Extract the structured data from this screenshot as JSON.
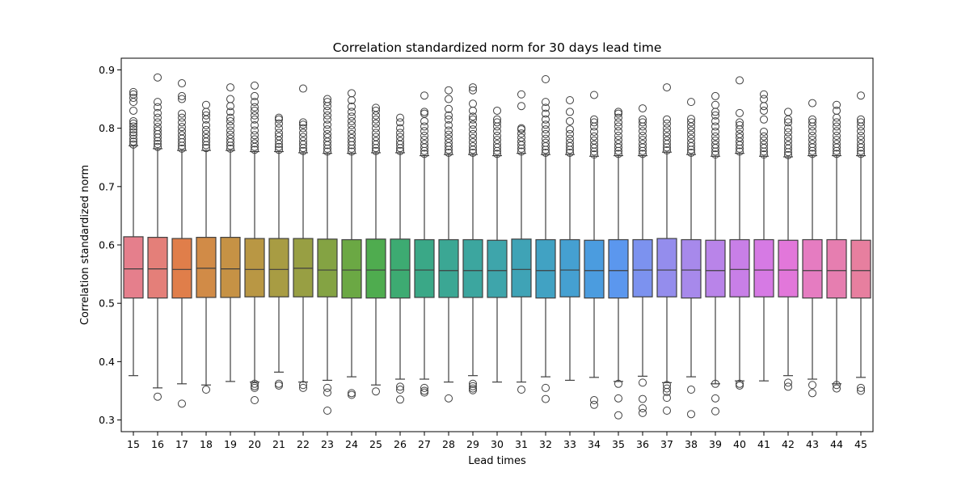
{
  "chart_data": {
    "type": "box",
    "title": "Correlation standardized norm for 30 days lead time",
    "xlabel": "Lead times",
    "ylabel": "Correlation standardized norm",
    "ylim": [
      0.28,
      0.92
    ],
    "yticks": [
      "0.3",
      "0.4",
      "0.5",
      "0.6",
      "0.7",
      "0.8",
      "0.9"
    ],
    "ytick_values": [
      0.3,
      0.4,
      0.5,
      0.6,
      0.7,
      0.8,
      0.9
    ],
    "grid": false,
    "legend": "none",
    "categories": [
      "15",
      "16",
      "17",
      "18",
      "19",
      "20",
      "21",
      "22",
      "23",
      "24",
      "25",
      "26",
      "27",
      "28",
      "29",
      "30",
      "31",
      "32",
      "33",
      "34",
      "35",
      "36",
      "37",
      "38",
      "39",
      "40",
      "41",
      "42",
      "43",
      "44",
      "45"
    ],
    "colors": [
      "#e57f8c",
      "#e47f79",
      "#e07e4a",
      "#d18b47",
      "#c69245",
      "#b99744",
      "#a89c43",
      "#989f43",
      "#84a343",
      "#6ba844",
      "#4fac4f",
      "#3dab72",
      "#3aa887",
      "#3ba794",
      "#3ca69f",
      "#3ea5ab",
      "#3fa3b6",
      "#41a2c3",
      "#45a0d1",
      "#4b9cdf",
      "#5b97ee",
      "#7c92ef",
      "#948ded",
      "#a789eb",
      "#b984e9",
      "#c87fe7",
      "#d67ae4",
      "#e277da",
      "#e57cc1",
      "#e67eb0",
      "#e77f9f"
    ],
    "boxes": [
      {
        "q1": 0.509,
        "median": 0.559,
        "q3": 0.614,
        "whislo": 0.376,
        "whishi": 0.77,
        "fliers_low": [],
        "fliers_high": [
          0.772,
          0.777,
          0.782,
          0.788,
          0.793,
          0.798,
          0.803,
          0.808,
          0.812,
          0.83,
          0.845,
          0.852,
          0.858,
          0.862
        ]
      },
      {
        "q1": 0.509,
        "median": 0.559,
        "q3": 0.613,
        "whislo": 0.355,
        "whishi": 0.765,
        "fliers_low": [
          0.34
        ],
        "fliers_high": [
          0.768,
          0.773,
          0.778,
          0.784,
          0.79,
          0.796,
          0.802,
          0.81,
          0.818,
          0.826,
          0.836,
          0.845,
          0.887
        ]
      },
      {
        "q1": 0.509,
        "median": 0.558,
        "q3": 0.611,
        "whislo": 0.362,
        "whishi": 0.762,
        "fliers_low": [
          0.328
        ],
        "fliers_high": [
          0.765,
          0.77,
          0.776,
          0.782,
          0.788,
          0.795,
          0.802,
          0.81,
          0.818,
          0.825,
          0.85,
          0.855,
          0.877
        ]
      },
      {
        "q1": 0.51,
        "median": 0.56,
        "q3": 0.613,
        "whislo": 0.36,
        "whishi": 0.762,
        "fliers_low": [
          0.352
        ],
        "fliers_high": [
          0.766,
          0.771,
          0.777,
          0.783,
          0.79,
          0.797,
          0.805,
          0.815,
          0.822,
          0.828,
          0.84
        ]
      },
      {
        "q1": 0.51,
        "median": 0.559,
        "q3": 0.613,
        "whislo": 0.366,
        "whishi": 0.762,
        "fliers_low": [],
        "fliers_high": [
          0.765,
          0.77,
          0.776,
          0.782,
          0.789,
          0.796,
          0.804,
          0.812,
          0.818,
          0.828,
          0.838,
          0.85,
          0.87
        ]
      },
      {
        "q1": 0.511,
        "median": 0.558,
        "q3": 0.611,
        "whislo": 0.365,
        "whishi": 0.76,
        "fliers_low": [
          0.362,
          0.358,
          0.355,
          0.334
        ],
        "fliers_high": [
          0.763,
          0.768,
          0.774,
          0.781,
          0.788,
          0.796,
          0.805,
          0.815,
          0.822,
          0.83,
          0.836,
          0.845,
          0.855,
          0.873
        ]
      },
      {
        "q1": 0.511,
        "median": 0.558,
        "q3": 0.611,
        "whislo": 0.382,
        "whishi": 0.76,
        "fliers_low": [
          0.362,
          0.359
        ],
        "fliers_high": [
          0.763,
          0.768,
          0.773,
          0.779,
          0.786,
          0.792,
          0.8,
          0.808,
          0.815,
          0.818
        ]
      },
      {
        "q1": 0.511,
        "median": 0.56,
        "q3": 0.611,
        "whislo": 0.365,
        "whishi": 0.758,
        "fliers_low": [
          0.36,
          0.355
        ],
        "fliers_high": [
          0.761,
          0.766,
          0.772,
          0.778,
          0.785,
          0.792,
          0.8,
          0.806,
          0.81,
          0.868
        ]
      },
      {
        "q1": 0.511,
        "median": 0.557,
        "q3": 0.61,
        "whislo": 0.368,
        "whishi": 0.757,
        "fliers_low": [
          0.355,
          0.347,
          0.316
        ],
        "fliers_high": [
          0.76,
          0.765,
          0.771,
          0.777,
          0.784,
          0.79,
          0.798,
          0.806,
          0.815,
          0.822,
          0.83,
          0.838,
          0.845,
          0.85
        ]
      },
      {
        "q1": 0.509,
        "median": 0.557,
        "q3": 0.609,
        "whislo": 0.374,
        "whishi": 0.757,
        "fliers_low": [
          0.346,
          0.343
        ],
        "fliers_high": [
          0.76,
          0.765,
          0.771,
          0.777,
          0.783,
          0.79,
          0.797,
          0.805,
          0.812,
          0.82,
          0.828,
          0.837,
          0.848,
          0.86
        ]
      },
      {
        "q1": 0.509,
        "median": 0.557,
        "q3": 0.61,
        "whislo": 0.36,
        "whishi": 0.758,
        "fliers_low": [
          0.349
        ],
        "fliers_high": [
          0.761,
          0.766,
          0.772,
          0.778,
          0.785,
          0.792,
          0.8,
          0.808,
          0.815,
          0.822,
          0.83,
          0.835
        ]
      },
      {
        "q1": 0.509,
        "median": 0.557,
        "q3": 0.61,
        "whislo": 0.37,
        "whishi": 0.758,
        "fliers_low": [
          0.357,
          0.352,
          0.335
        ],
        "fliers_high": [
          0.761,
          0.766,
          0.772,
          0.778,
          0.785,
          0.792,
          0.8,
          0.81,
          0.818
        ]
      },
      {
        "q1": 0.51,
        "median": 0.557,
        "q3": 0.609,
        "whislo": 0.37,
        "whishi": 0.753,
        "fliers_low": [
          0.355,
          0.35,
          0.347
        ],
        "fliers_high": [
          0.756,
          0.761,
          0.767,
          0.773,
          0.78,
          0.787,
          0.795,
          0.803,
          0.812,
          0.825,
          0.828,
          0.856
        ]
      },
      {
        "q1": 0.51,
        "median": 0.556,
        "q3": 0.609,
        "whislo": 0.365,
        "whishi": 0.755,
        "fliers_low": [
          0.337
        ],
        "fliers_high": [
          0.758,
          0.763,
          0.769,
          0.775,
          0.782,
          0.789,
          0.796,
          0.805,
          0.815,
          0.822,
          0.833,
          0.85,
          0.865
        ]
      },
      {
        "q1": 0.51,
        "median": 0.556,
        "q3": 0.609,
        "whislo": 0.376,
        "whishi": 0.755,
        "fliers_low": [
          0.362,
          0.358,
          0.354,
          0.351
        ],
        "fliers_high": [
          0.758,
          0.763,
          0.769,
          0.776,
          0.783,
          0.79,
          0.798,
          0.806,
          0.815,
          0.82,
          0.83,
          0.842,
          0.865,
          0.87
        ]
      },
      {
        "q1": 0.51,
        "median": 0.556,
        "q3": 0.608,
        "whislo": 0.365,
        "whishi": 0.753,
        "fliers_low": [],
        "fliers_high": [
          0.756,
          0.761,
          0.767,
          0.773,
          0.78,
          0.787,
          0.795,
          0.803,
          0.81,
          0.815,
          0.83
        ]
      },
      {
        "q1": 0.511,
        "median": 0.558,
        "q3": 0.61,
        "whislo": 0.365,
        "whishi": 0.757,
        "fliers_low": [
          0.352
        ],
        "fliers_high": [
          0.76,
          0.765,
          0.771,
          0.777,
          0.784,
          0.791,
          0.798,
          0.8,
          0.838,
          0.858
        ]
      },
      {
        "q1": 0.509,
        "median": 0.556,
        "q3": 0.609,
        "whislo": 0.374,
        "whishi": 0.755,
        "fliers_low": [
          0.355,
          0.336
        ],
        "fliers_high": [
          0.758,
          0.763,
          0.769,
          0.775,
          0.782,
          0.79,
          0.798,
          0.806,
          0.815,
          0.825,
          0.835,
          0.845,
          0.884
        ]
      },
      {
        "q1": 0.511,
        "median": 0.557,
        "q3": 0.609,
        "whislo": 0.368,
        "whishi": 0.755,
        "fliers_low": [],
        "fliers_high": [
          0.758,
          0.763,
          0.769,
          0.775,
          0.782,
          0.79,
          0.798,
          0.812,
          0.828,
          0.848
        ]
      },
      {
        "q1": 0.509,
        "median": 0.556,
        "q3": 0.608,
        "whislo": 0.373,
        "whishi": 0.752,
        "fliers_low": [
          0.334,
          0.326
        ],
        "fliers_high": [
          0.755,
          0.76,
          0.766,
          0.772,
          0.779,
          0.786,
          0.794,
          0.803,
          0.81,
          0.815,
          0.857
        ]
      },
      {
        "q1": 0.509,
        "median": 0.556,
        "q3": 0.609,
        "whislo": 0.366,
        "whishi": 0.753,
        "fliers_low": [
          0.362,
          0.337,
          0.308
        ],
        "fliers_high": [
          0.756,
          0.761,
          0.767,
          0.773,
          0.78,
          0.787,
          0.795,
          0.803,
          0.81,
          0.818,
          0.825,
          0.828
        ]
      },
      {
        "q1": 0.511,
        "median": 0.557,
        "q3": 0.609,
        "whislo": 0.375,
        "whishi": 0.753,
        "fliers_low": [
          0.364,
          0.336,
          0.32,
          0.312
        ],
        "fliers_high": [
          0.756,
          0.761,
          0.767,
          0.773,
          0.78,
          0.787,
          0.795,
          0.803,
          0.81,
          0.815,
          0.834
        ]
      },
      {
        "q1": 0.511,
        "median": 0.557,
        "q3": 0.611,
        "whislo": 0.364,
        "whishi": 0.759,
        "fliers_low": [
          0.36,
          0.354,
          0.348,
          0.338,
          0.316
        ],
        "fliers_high": [
          0.762,
          0.767,
          0.773,
          0.779,
          0.786,
          0.793,
          0.8,
          0.808,
          0.815,
          0.87
        ]
      },
      {
        "q1": 0.509,
        "median": 0.557,
        "q3": 0.609,
        "whislo": 0.374,
        "whishi": 0.755,
        "fliers_low": [
          0.352,
          0.31
        ],
        "fliers_high": [
          0.758,
          0.763,
          0.769,
          0.775,
          0.782,
          0.789,
          0.796,
          0.803,
          0.81,
          0.816,
          0.845
        ]
      },
      {
        "q1": 0.511,
        "median": 0.556,
        "q3": 0.608,
        "whislo": 0.362,
        "whishi": 0.752,
        "fliers_low": [
          0.362,
          0.337,
          0.315
        ],
        "fliers_high": [
          0.755,
          0.76,
          0.766,
          0.772,
          0.779,
          0.786,
          0.794,
          0.803,
          0.812,
          0.822,
          0.828,
          0.84,
          0.855
        ]
      },
      {
        "q1": 0.511,
        "median": 0.558,
        "q3": 0.609,
        "whislo": 0.367,
        "whishi": 0.757,
        "fliers_low": [
          0.362,
          0.359
        ],
        "fliers_high": [
          0.76,
          0.765,
          0.771,
          0.777,
          0.784,
          0.79,
          0.798,
          0.805,
          0.81,
          0.826,
          0.882
        ]
      },
      {
        "q1": 0.511,
        "median": 0.557,
        "q3": 0.609,
        "whislo": 0.367,
        "whishi": 0.752,
        "fliers_low": [],
        "fliers_high": [
          0.755,
          0.76,
          0.766,
          0.772,
          0.779,
          0.786,
          0.794,
          0.815,
          0.83,
          0.838,
          0.85,
          0.858
        ]
      },
      {
        "q1": 0.511,
        "median": 0.557,
        "q3": 0.608,
        "whislo": 0.376,
        "whishi": 0.751,
        "fliers_low": [
          0.364,
          0.357
        ],
        "fliers_high": [
          0.754,
          0.759,
          0.765,
          0.771,
          0.778,
          0.785,
          0.793,
          0.8,
          0.81,
          0.815,
          0.828
        ]
      },
      {
        "q1": 0.509,
        "median": 0.556,
        "q3": 0.609,
        "whislo": 0.37,
        "whishi": 0.753,
        "fliers_low": [
          0.36,
          0.346
        ],
        "fliers_high": [
          0.756,
          0.761,
          0.767,
          0.773,
          0.78,
          0.787,
          0.795,
          0.803,
          0.81,
          0.815,
          0.843
        ]
      },
      {
        "q1": 0.509,
        "median": 0.556,
        "q3": 0.609,
        "whislo": 0.362,
        "whishi": 0.753,
        "fliers_low": [
          0.36,
          0.354
        ],
        "fliers_high": [
          0.756,
          0.761,
          0.767,
          0.773,
          0.78,
          0.787,
          0.795,
          0.803,
          0.81,
          0.818,
          0.83,
          0.84
        ]
      },
      {
        "q1": 0.509,
        "median": 0.556,
        "q3": 0.608,
        "whislo": 0.373,
        "whishi": 0.753,
        "fliers_low": [
          0.355,
          0.35
        ],
        "fliers_high": [
          0.756,
          0.761,
          0.767,
          0.773,
          0.78,
          0.787,
          0.795,
          0.803,
          0.81,
          0.815,
          0.856
        ]
      }
    ]
  }
}
